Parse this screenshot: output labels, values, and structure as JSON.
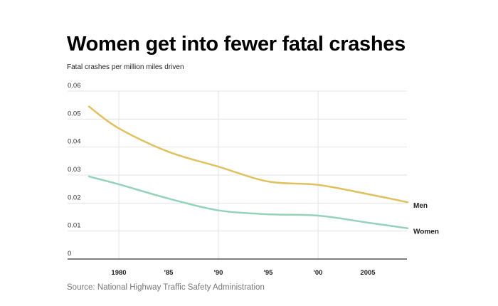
{
  "chart_data": {
    "type": "line",
    "title": "Women get into fewer fatal crashes",
    "subtitle": "Fatal crashes per million miles driven",
    "source": "Source: National Highway Traffic Safety Administration",
    "xlabel": "",
    "ylabel": "",
    "xlim": [
      1977,
      2009
    ],
    "ylim": [
      0,
      0.06
    ],
    "grid": true,
    "y_ticks": [
      {
        "value": 0,
        "label": "0"
      },
      {
        "value": 0.01,
        "label": "0.01"
      },
      {
        "value": 0.02,
        "label": "0.02"
      },
      {
        "value": 0.03,
        "label": "0.03"
      },
      {
        "value": 0.04,
        "label": "0.04"
      },
      {
        "value": 0.05,
        "label": "0.05"
      },
      {
        "value": 0.06,
        "label": "0.06"
      }
    ],
    "x_ticks": [
      {
        "value": 1980,
        "label": "1980",
        "gridline": true
      },
      {
        "value": 1985,
        "label": "'85",
        "gridline": false
      },
      {
        "value": 1990,
        "label": "'90",
        "gridline": true
      },
      {
        "value": 1995,
        "label": "'95",
        "gridline": false
      },
      {
        "value": 2000,
        "label": "'00",
        "gridline": true
      },
      {
        "value": 2005,
        "label": "2005",
        "gridline": false
      }
    ],
    "legend_placement": "right end of lines",
    "series": [
      {
        "name": "Men",
        "color": "#e0c160",
        "x": [
          1977,
          1980,
          1985,
          1990,
          1995,
          2000,
          2005,
          2009
        ],
        "y": [
          0.0545,
          0.0467,
          0.0383,
          0.033,
          0.0277,
          0.0265,
          0.0232,
          0.0203
        ]
      },
      {
        "name": "Women",
        "color": "#94d3b8",
        "x": [
          1977,
          1980,
          1985,
          1990,
          1995,
          2000,
          2005,
          2009
        ],
        "y": [
          0.0295,
          0.0267,
          0.0216,
          0.0174,
          0.016,
          0.0155,
          0.013,
          0.011
        ]
      }
    ]
  }
}
